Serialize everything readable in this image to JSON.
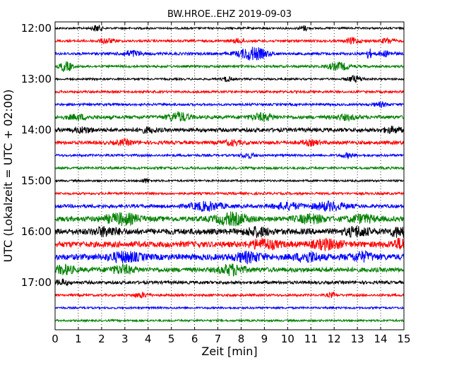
{
  "chart_data": {
    "type": "line",
    "title": "BW.HROE..EHZ 2019-09-03",
    "xlabel": "Zeit  [min]",
    "ylabel": "UTC (Lokalzeit = UTC + 02:00)",
    "xlim": [
      0,
      15
    ],
    "x_ticks": [
      "0",
      "1",
      "2",
      "3",
      "4",
      "5",
      "6",
      "7",
      "8",
      "9",
      "10",
      "11",
      "12",
      "13",
      "14",
      "15"
    ],
    "y_tick_labels": [
      "12:00",
      "13:00",
      "14:00",
      "15:00",
      "16:00",
      "17:00"
    ],
    "grid": "vertical dotted",
    "colors": [
      "#000000",
      "#ff0000",
      "#0000ff",
      "#008000"
    ],
    "series": [
      {
        "start": "12:00",
        "color": "#000000",
        "noise": 0.25,
        "bursts": [
          [
            1.8,
            0.8,
            0.2
          ],
          [
            10.7,
            0.6,
            0.2
          ]
        ]
      },
      {
        "start": "12:15",
        "color": "#ff0000",
        "noise": 0.3,
        "bursts": [
          [
            2.2,
            0.6,
            0.3
          ],
          [
            7.9,
            0.5,
            0.3
          ],
          [
            12.8,
            0.7,
            0.3
          ],
          [
            14.3,
            0.6,
            0.3
          ]
        ]
      },
      {
        "start": "12:30",
        "color": "#0000ff",
        "noise": 0.35,
        "bursts": [
          [
            3.3,
            0.7,
            0.4
          ],
          [
            8.5,
            1.6,
            0.6
          ],
          [
            13.5,
            1.2,
            0.12
          ],
          [
            14.2,
            0.6,
            0.3
          ]
        ]
      },
      {
        "start": "12:45",
        "color": "#008000",
        "noise": 0.3,
        "bursts": [
          [
            0.4,
            1.2,
            0.2
          ],
          [
            0.6,
            1.0,
            0.15
          ],
          [
            12.2,
            0.9,
            0.5
          ]
        ]
      },
      {
        "start": "13:00",
        "color": "#000000",
        "noise": 0.25,
        "bursts": [
          [
            7.4,
            0.6,
            0.2
          ],
          [
            12.9,
            0.8,
            0.35
          ]
        ]
      },
      {
        "start": "13:15",
        "color": "#ff0000",
        "noise": 0.3,
        "bursts": []
      },
      {
        "start": "13:30",
        "color": "#0000ff",
        "noise": 0.3,
        "bursts": [
          [
            14.0,
            0.5,
            0.3
          ]
        ]
      },
      {
        "start": "13:45",
        "color": "#008000",
        "noise": 0.45,
        "bursts": [
          [
            1.0,
            0.5,
            0.5
          ],
          [
            5.3,
            1.1,
            0.45
          ],
          [
            8.9,
            0.8,
            0.5
          ],
          [
            12.5,
            0.5,
            0.5
          ]
        ]
      },
      {
        "start": "14:00",
        "color": "#000000",
        "noise": 0.5,
        "bursts": [
          [
            1.2,
            0.6,
            0.4
          ],
          [
            4.0,
            0.5,
            0.4
          ],
          [
            14.5,
            0.6,
            0.4
          ]
        ]
      },
      {
        "start": "14:15",
        "color": "#ff0000",
        "noise": 0.45,
        "bursts": [
          [
            3.0,
            0.5,
            0.4
          ],
          [
            7.6,
            0.5,
            0.4
          ],
          [
            11.0,
            0.5,
            0.4
          ]
        ]
      },
      {
        "start": "14:30",
        "color": "#0000ff",
        "noise": 0.3,
        "bursts": [
          [
            8.3,
            0.6,
            0.3
          ],
          [
            12.6,
            0.5,
            0.3
          ]
        ]
      },
      {
        "start": "14:45",
        "color": "#008000",
        "noise": 0.3,
        "bursts": []
      },
      {
        "start": "15:00",
        "color": "#000000",
        "noise": 0.25,
        "bursts": [
          [
            3.9,
            0.5,
            0.2
          ]
        ]
      },
      {
        "start": "15:15",
        "color": "#ff0000",
        "noise": 0.3,
        "bursts": []
      },
      {
        "start": "15:30",
        "color": "#0000ff",
        "noise": 0.45,
        "bursts": [
          [
            6.5,
            1.0,
            0.7
          ],
          [
            10.0,
            0.8,
            0.6
          ],
          [
            11.8,
            1.0,
            0.7
          ]
        ]
      },
      {
        "start": "15:45",
        "color": "#008000",
        "noise": 0.65,
        "bursts": [
          [
            2.9,
            1.2,
            0.7
          ],
          [
            7.6,
            1.3,
            0.7
          ],
          [
            11.0,
            0.9,
            0.6
          ],
          [
            13.2,
            0.8,
            0.6
          ]
        ]
      },
      {
        "start": "16:00",
        "color": "#000000",
        "noise": 0.75,
        "bursts": [
          [
            2.2,
            0.9,
            0.5
          ],
          [
            8.7,
            0.9,
            0.5
          ],
          [
            13.0,
            1.0,
            0.5
          ],
          [
            14.8,
            1.0,
            0.4
          ]
        ]
      },
      {
        "start": "16:15",
        "color": "#ff0000",
        "noise": 0.75,
        "bursts": [
          [
            9.0,
            1.0,
            0.6
          ],
          [
            11.7,
            1.0,
            0.6
          ],
          [
            14.9,
            1.1,
            0.4
          ]
        ]
      },
      {
        "start": "16:30",
        "color": "#0000ff",
        "noise": 0.75,
        "bursts": [
          [
            3.0,
            1.0,
            0.7
          ],
          [
            8.3,
            1.0,
            0.6
          ],
          [
            10.9,
            1.0,
            0.5
          ],
          [
            13.2,
            0.9,
            0.5
          ]
        ]
      },
      {
        "start": "16:45",
        "color": "#008000",
        "noise": 0.6,
        "bursts": [
          [
            0.4,
            1.0,
            0.4
          ],
          [
            2.9,
            0.9,
            0.5
          ],
          [
            7.6,
            1.2,
            0.5
          ]
        ]
      },
      {
        "start": "17:00",
        "color": "#000000",
        "noise": 0.4,
        "bursts": [
          [
            0.3,
            0.6,
            0.3
          ]
        ]
      },
      {
        "start": "17:15",
        "color": "#ff0000",
        "noise": 0.3,
        "bursts": [
          [
            3.7,
            0.6,
            0.3
          ],
          [
            11.9,
            0.5,
            0.2
          ]
        ]
      },
      {
        "start": "17:30",
        "color": "#0000ff",
        "noise": 0.25,
        "bursts": []
      },
      {
        "start": "17:45",
        "color": "#008000",
        "noise": 0.25,
        "bursts": []
      }
    ]
  }
}
